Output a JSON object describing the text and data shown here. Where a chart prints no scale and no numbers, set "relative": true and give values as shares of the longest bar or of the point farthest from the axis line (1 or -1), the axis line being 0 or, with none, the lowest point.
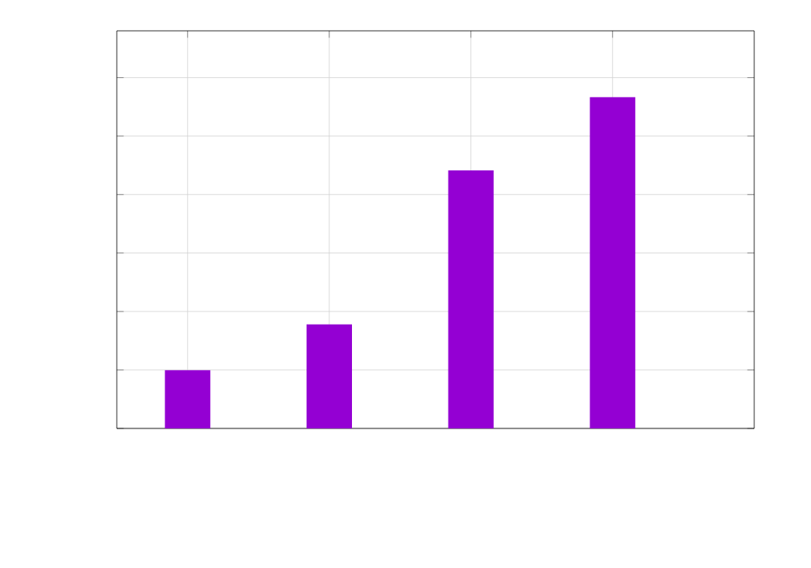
{
  "chart_data": {
    "type": "bar",
    "categories": [
      null,
      null,
      null,
      null
    ],
    "values": [
      0.176,
      0.314,
      0.779,
      1
    ],
    "color": "#9400d3",
    "relative": true,
    "grid": true
  }
}
